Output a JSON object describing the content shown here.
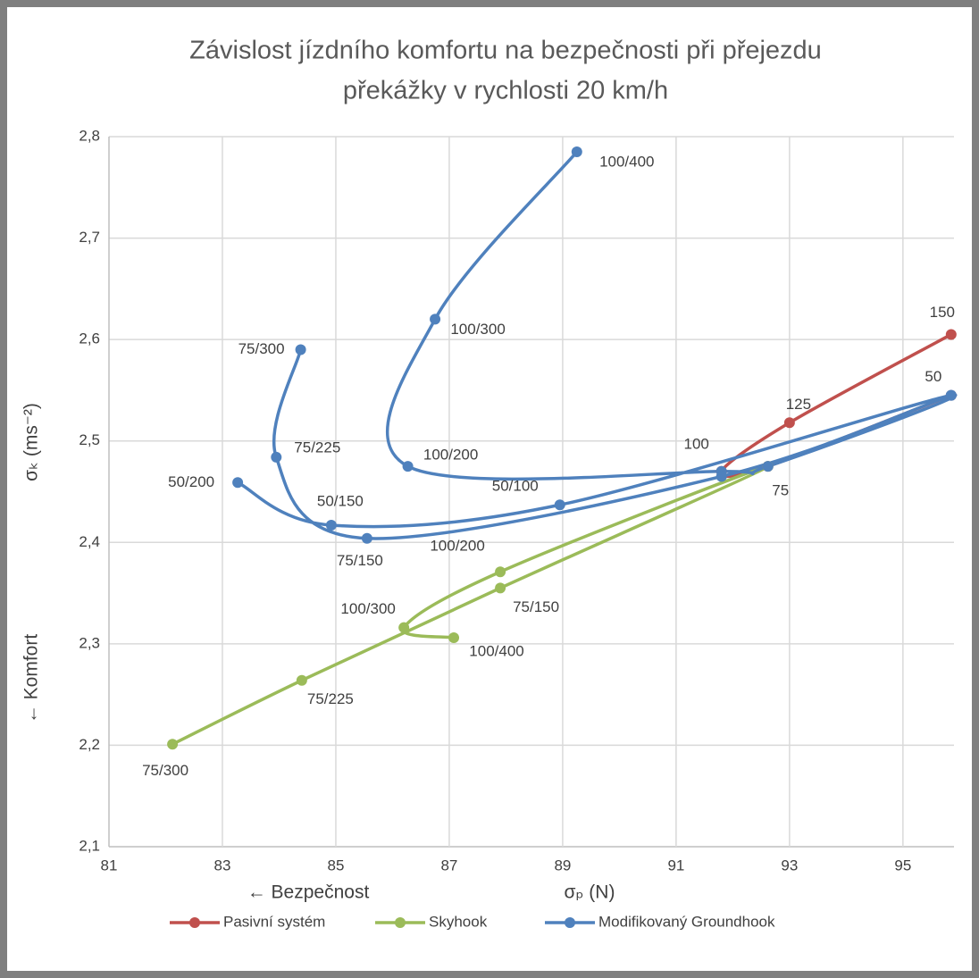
{
  "chart_data": {
    "type": "scatter_smooth",
    "title": [
      "Závislost jízdního komfortu na bezpečnosti při přejezdu",
      "překážky v rychlosti 20 km/h"
    ],
    "xlabel": "σₚ (N)",
    "ylabel": "σₖ (ms⁻²)",
    "annotations": [
      "← Bezpečnost",
      "← Komfort"
    ],
    "xlim": [
      81,
      95.9
    ],
    "xticks": [
      81,
      83,
      85,
      87,
      89,
      91,
      93,
      95
    ],
    "ylim": [
      2.1,
      2.8
    ],
    "yticks": [
      {
        "value": 2.1,
        "label": "2,1"
      },
      {
        "value": 2.2,
        "label": "2,2"
      },
      {
        "value": 2.3,
        "label": "2,3"
      },
      {
        "value": 2.4,
        "label": "2,4"
      },
      {
        "value": 2.5,
        "label": "2,5"
      },
      {
        "value": 2.6,
        "label": "2,6"
      },
      {
        "value": 2.7,
        "label": "2,7"
      },
      {
        "value": 2.8,
        "label": "2,8"
      }
    ],
    "grid": true,
    "legend": "bottom",
    "series": [
      {
        "name": "Pasivní systém",
        "color": "#c0504d",
        "x": [
          95.85,
          92.62,
          91.8,
          93.0,
          95.85
        ],
        "y": [
          2.545,
          2.475,
          2.47,
          2.518,
          2.605
        ],
        "labels": [
          "50",
          "75",
          "100",
          "125",
          "150"
        ]
      },
      {
        "name": "Skyhook",
        "color": "#9bbb59",
        "x": [
          87.08,
          86.2,
          87.9,
          92.62,
          87.9,
          84.4,
          82.12
        ],
        "y": [
          2.306,
          2.316,
          2.371,
          2.475,
          2.355,
          2.264,
          2.201
        ],
        "labels": [
          "100/400",
          "100/300",
          "100/200",
          null,
          "75/150",
          "75/225",
          "75/300"
        ]
      },
      {
        "name": "Modifikovaný Groundhook",
        "color": "#4f81bd",
        "x": [
          89.25,
          86.75,
          86.27,
          91.8,
          92.62,
          95.85,
          88.95,
          84.92,
          83.27,
          null,
          84.38,
          83.95,
          85.55,
          91.8,
          95.85
        ],
        "y": [
          2.785,
          2.62,
          2.475,
          2.47,
          2.475,
          2.545,
          2.437,
          2.417,
          2.459,
          null,
          2.59,
          2.484,
          2.404,
          2.465,
          2.545
        ],
        "labels": [
          "100/400",
          "100/300",
          "100/200",
          null,
          null,
          null,
          "50/100",
          "50/150",
          "50/200",
          null,
          "75/300",
          "75/225",
          "75/150",
          null,
          null
        ]
      }
    ]
  }
}
